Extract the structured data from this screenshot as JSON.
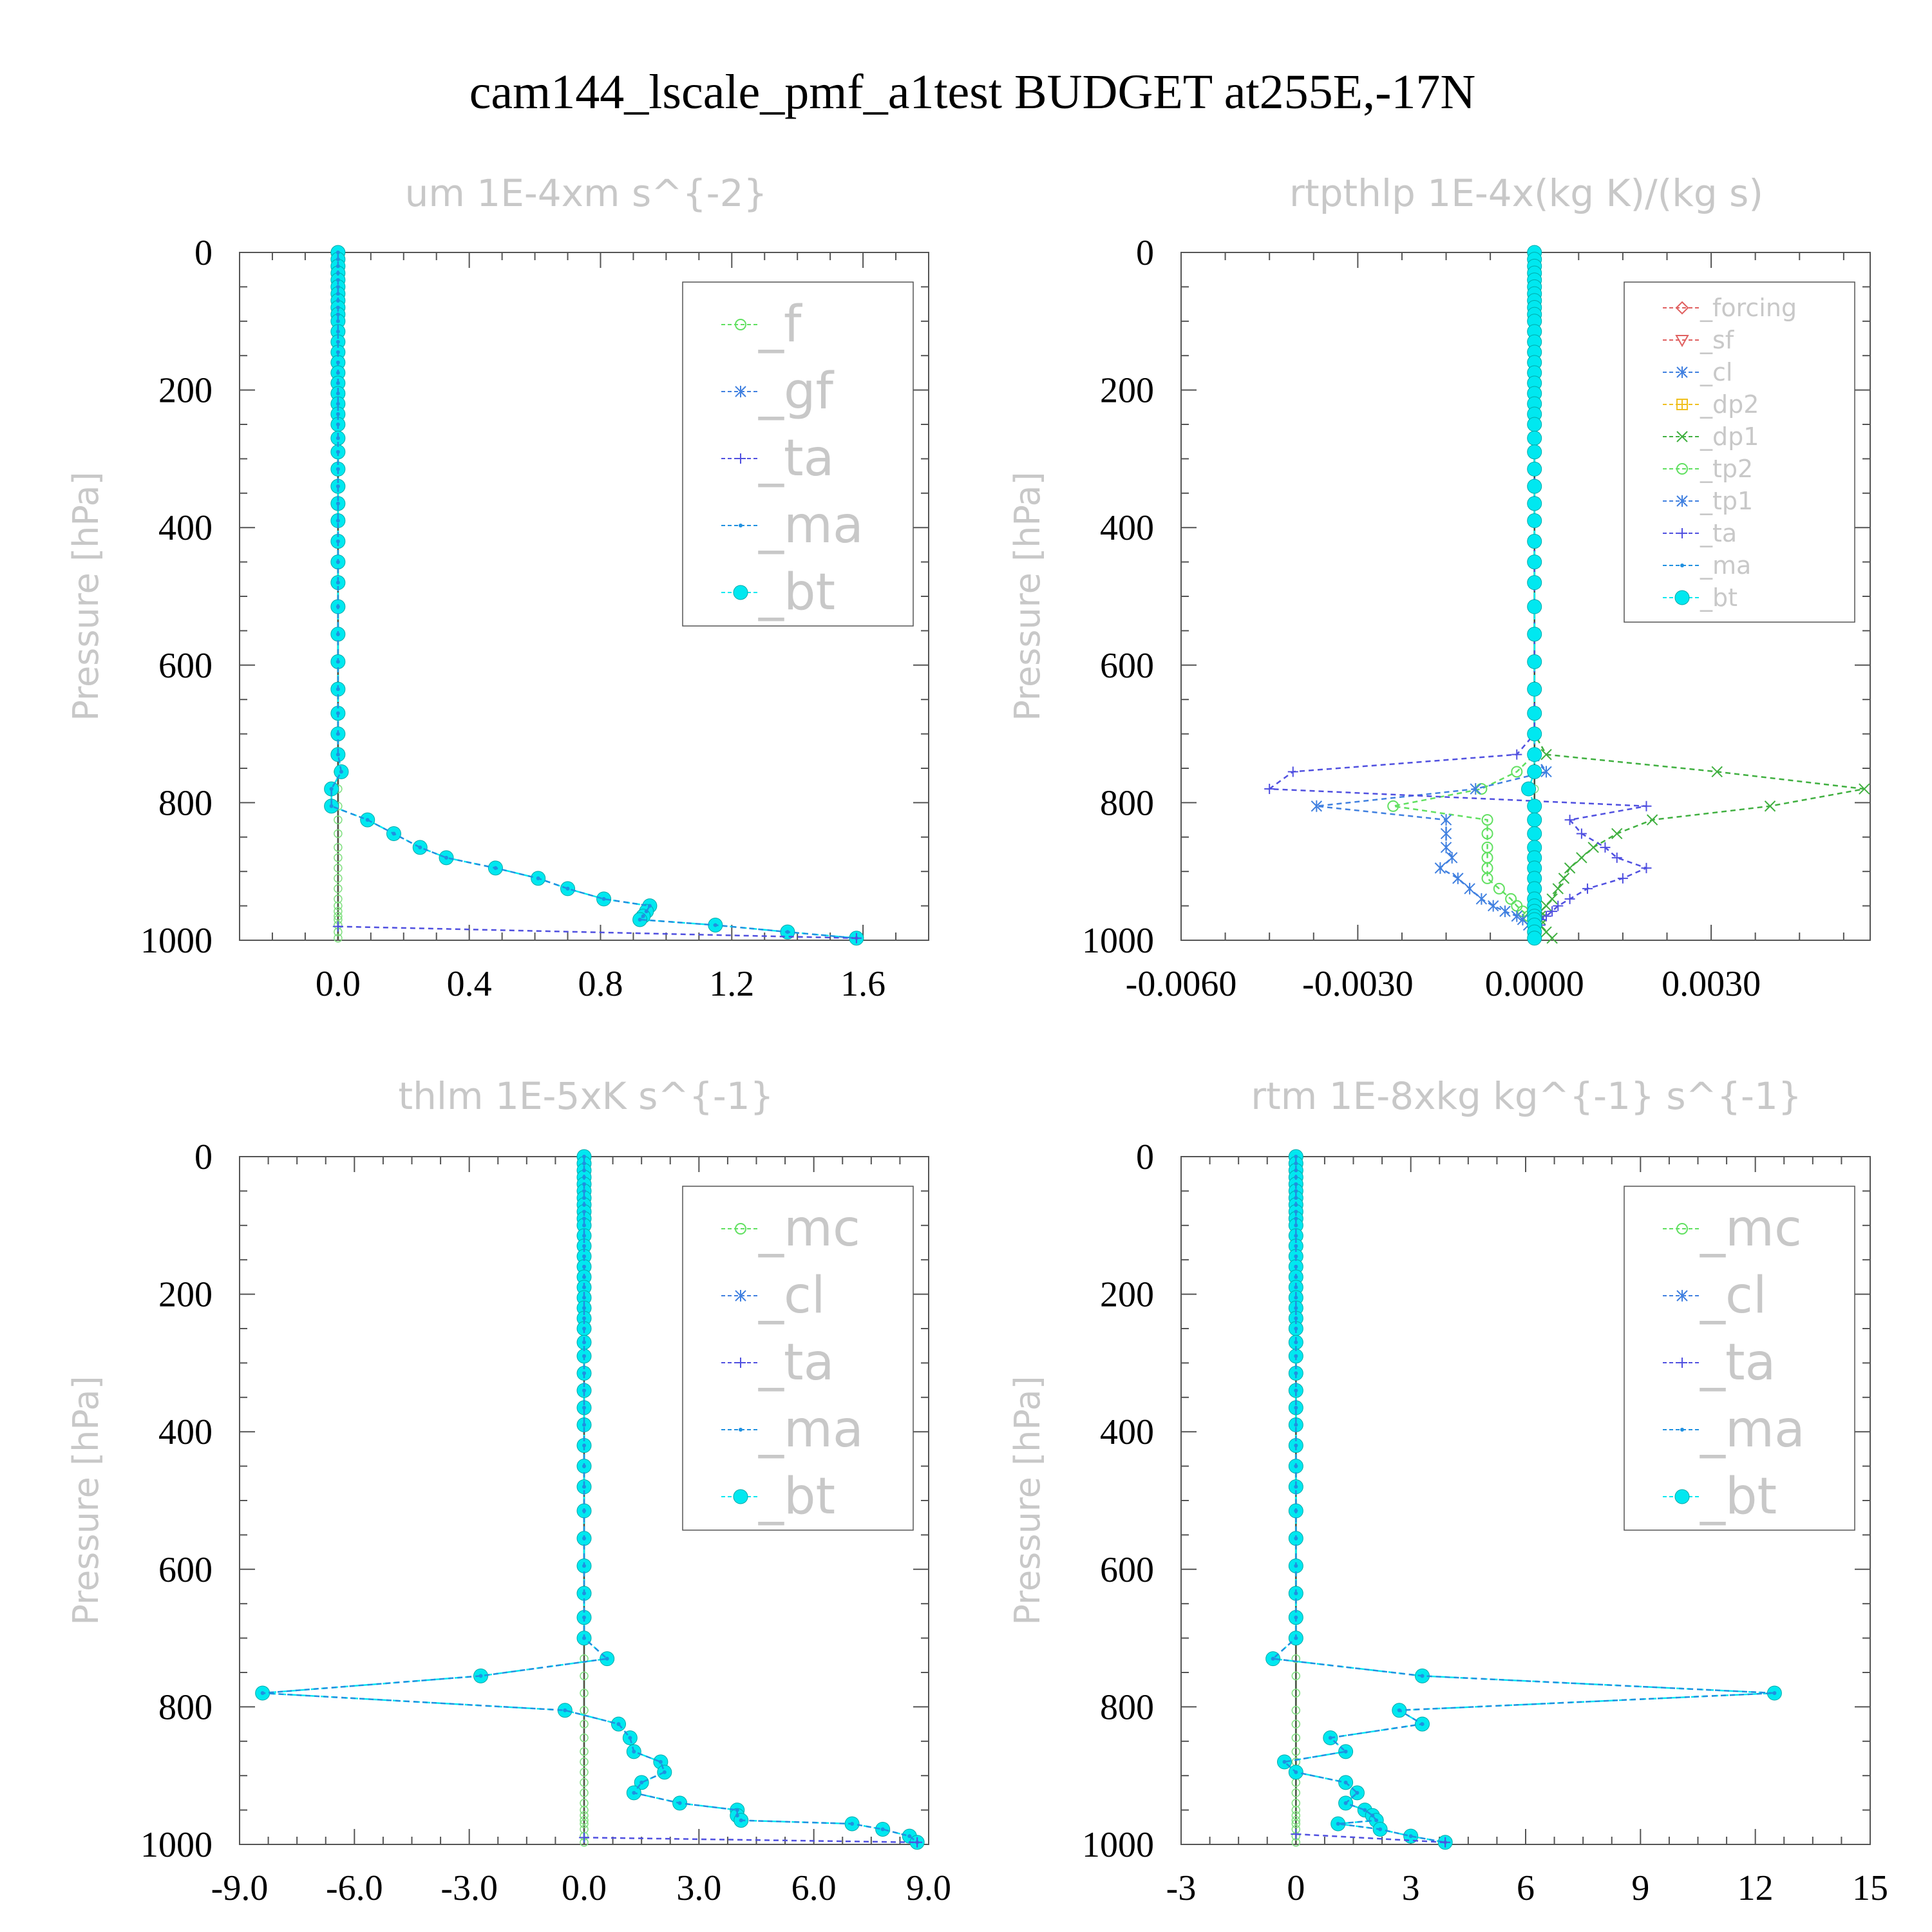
{
  "title": "cam144_lscale_pmf_a1test  BUDGET at255E,-17N",
  "y_axis_label": "Pressure [hPa]",
  "colors": {
    "forcing": "#e06060",
    "sf": "#e06060",
    "cl_orange": "#f0b040",
    "dp2": "#f0c020",
    "dp1": "#40b040",
    "f": "#60e060",
    "gf": "#4080e0",
    "mc": "#60e060",
    "tp2": "#60e060",
    "tp1": "#4080e0",
    "cl": "#4080e0",
    "ta": "#5050e0",
    "ma": "#2090e0",
    "bt": "#00e8f0"
  },
  "chart_data": [
    {
      "type": "line",
      "title": "um  1E-4xm s^{-2}",
      "ylabel": "Pressure [hPa]",
      "ylim": [
        1000,
        0
      ],
      "xlim": [
        -0.3,
        1.8
      ],
      "xticks": [
        0.0,
        0.4,
        0.8,
        1.2,
        1.6
      ],
      "xtick_labels": [
        "0.0",
        "0.4",
        "0.8",
        "1.2",
        "1.6"
      ],
      "yticks": [
        0,
        200,
        400,
        600,
        800,
        1000
      ],
      "ytick_labels": [
        "0",
        "200",
        "400",
        "600",
        "800",
        "1000"
      ],
      "legend": [
        "_f",
        "_gf",
        "_ta",
        "_ma",
        "_bt"
      ],
      "legend_position": "top-right",
      "legend_size": "large",
      "pressure": [
        0,
        10,
        20,
        30,
        40,
        50,
        60,
        70,
        80,
        90,
        100,
        115,
        130,
        145,
        160,
        175,
        190,
        205,
        220,
        235,
        250,
        270,
        290,
        315,
        340,
        365,
        390,
        420,
        450,
        480,
        515,
        555,
        595,
        635,
        670,
        700,
        730,
        755,
        780,
        805,
        825,
        845,
        865,
        880,
        895,
        910,
        925,
        940,
        950,
        958,
        965,
        970,
        978,
        988,
        997
      ],
      "series": [
        {
          "name": "_bt",
          "color_key": "bt",
          "marker": "dot",
          "values": [
            0,
            0,
            0,
            0,
            0,
            0,
            0,
            0,
            0,
            0,
            0,
            0,
            0,
            0,
            0,
            0,
            0,
            0,
            0,
            0,
            0,
            0,
            0,
            0,
            0,
            0,
            0,
            0,
            0,
            0,
            0,
            0,
            0,
            0,
            0,
            0,
            0,
            0.01,
            -0.02,
            -0.02,
            0.09,
            0.17,
            0.25,
            0.33,
            0.48,
            0.61,
            0.7,
            0.81,
            0.95,
            0.94,
            0.93,
            0.92,
            1.15,
            1.37,
            1.58
          ]
        },
        {
          "name": "_ma",
          "color_key": "ma",
          "marker": "tiny",
          "values": [
            0,
            0,
            0,
            0,
            0,
            0,
            0,
            0,
            0,
            0,
            0,
            0,
            0,
            0,
            0,
            0,
            0,
            0,
            0,
            0,
            0,
            0,
            0,
            0,
            0,
            0,
            0,
            0,
            0,
            0,
            0,
            0,
            0,
            0,
            0,
            0,
            0,
            0.01,
            -0.02,
            -0.02,
            0.09,
            0.17,
            0.25,
            0.33,
            0.48,
            0.61,
            0.7,
            0.81,
            0.95,
            0.94,
            0.93,
            0.92,
            1.15,
            1.37,
            1.58
          ]
        },
        {
          "name": "_ta",
          "color_key": "ta",
          "marker": "plus",
          "pressure": [
            980,
            997
          ],
          "values": [
            0,
            1.58
          ]
        }
      ]
    },
    {
      "type": "line",
      "title": "rtpthlp  1E-4x(kg K)/(kg s)",
      "ylabel": "Pressure [hPa]",
      "ylim": [
        1000,
        0
      ],
      "xlim": [
        -0.006,
        0.0057
      ],
      "xticks": [
        -0.006,
        -0.003,
        0.0,
        0.003
      ],
      "xtick_labels": [
        "-0.0060",
        "-0.0030",
        "0.0000",
        "0.0030"
      ],
      "yticks": [
        0,
        200,
        400,
        600,
        800,
        1000
      ],
      "ytick_labels": [
        "0",
        "200",
        "400",
        "600",
        "800",
        "1000"
      ],
      "legend": [
        "_forcing",
        "_sf",
        "_cl",
        "_dp2",
        "_dp1",
        "_tp2",
        "_tp1",
        "_ta",
        "_ma",
        "_bt"
      ],
      "legend_position": "top-right",
      "legend_size": "small",
      "pressure": [
        0,
        10,
        20,
        30,
        40,
        50,
        60,
        70,
        80,
        90,
        100,
        115,
        130,
        145,
        160,
        175,
        190,
        205,
        220,
        235,
        250,
        270,
        290,
        315,
        340,
        365,
        390,
        420,
        450,
        480,
        515,
        555,
        595,
        635,
        670,
        700,
        730,
        755,
        780,
        805,
        825,
        845,
        865,
        880,
        895,
        910,
        925,
        940,
        950,
        958,
        965,
        970,
        978,
        988,
        997
      ],
      "series": [
        {
          "name": "_dp1",
          "color_key": "dp1",
          "marker": "x",
          "values": [
            0,
            0,
            0,
            0,
            0,
            0,
            0,
            0,
            0,
            0,
            0,
            0,
            0,
            0,
            0,
            0,
            0,
            0,
            0,
            0,
            0,
            0,
            0,
            0,
            0,
            0,
            0,
            0,
            0,
            0,
            0,
            0,
            0,
            0,
            0,
            0,
            0.0002,
            0.0031,
            0.0056,
            0.004,
            0.002,
            0.0014,
            0.001,
            0.0008,
            0.0006,
            0.0005,
            0.0004,
            0.0003,
            0.0002,
            0.0001,
            0.0001,
            0.0001,
            0.0001,
            0.0002,
            0.0003
          ]
        },
        {
          "name": "_tp2",
          "color_key": "tp2",
          "marker": "circle",
          "values": [
            0,
            0,
            0,
            0,
            0,
            0,
            0,
            0,
            0,
            0,
            0,
            0,
            0,
            0,
            0,
            0,
            0,
            0,
            0,
            0,
            0,
            0,
            0,
            0,
            0,
            0,
            0,
            0,
            0,
            0,
            0,
            0,
            0,
            0,
            0,
            0,
            0,
            -0.0003,
            -0.0009,
            -0.0024,
            -0.0008,
            -0.0008,
            -0.0008,
            -0.0008,
            -0.0008,
            -0.0008,
            -0.0006,
            -0.0004,
            -0.0003,
            -0.0002,
            -0.0001,
            0,
            0,
            0,
            0
          ]
        },
        {
          "name": "_tp1",
          "color_key": "tp1",
          "marker": "asterisk",
          "values": [
            0,
            0,
            0,
            0,
            0,
            0,
            0,
            0,
            0,
            0,
            0,
            0,
            0,
            0,
            0,
            0,
            0,
            0,
            0,
            0,
            0,
            0,
            0,
            0,
            0,
            0,
            0,
            0,
            0,
            0,
            0,
            0,
            0,
            0,
            0,
            0,
            0,
            0.0002,
            -0.001,
            -0.0037,
            -0.0015,
            -0.0015,
            -0.0015,
            -0.0014,
            -0.0016,
            -0.0013,
            -0.0011,
            -0.0009,
            -0.0007,
            -0.0005,
            -0.0003,
            -0.0002,
            -0.0001,
            0,
            0
          ]
        },
        {
          "name": "_ta",
          "color_key": "ta",
          "marker": "plus",
          "values": [
            0,
            0,
            0,
            0,
            0,
            0,
            0,
            0,
            0,
            0,
            0,
            0,
            0,
            0,
            0,
            0,
            0,
            0,
            0,
            0,
            0,
            0,
            0,
            0,
            0,
            0,
            0,
            0,
            0,
            0,
            0,
            0,
            0,
            0,
            0,
            0,
            -0.0003,
            -0.0041,
            -0.0045,
            0.0019,
            0.0006,
            0.0008,
            0.0012,
            0.0014,
            0.0019,
            0.0015,
            0.0009,
            0.0006,
            0.0004,
            0.0003,
            0.0002,
            0.0001,
            0.0001,
            0,
            0
          ]
        },
        {
          "name": "_bt",
          "color_key": "bt",
          "marker": "dot",
          "values": [
            0,
            0,
            0,
            0,
            0,
            0,
            0,
            0,
            0,
            0,
            0,
            0,
            0,
            0,
            0,
            0,
            0,
            0,
            0,
            0,
            0,
            0,
            0,
            0,
            0,
            0,
            0,
            0,
            0,
            0,
            0,
            0,
            0,
            0,
            0,
            0,
            0,
            0,
            -0.0001,
            0,
            0,
            0,
            0,
            0,
            0,
            0,
            0,
            0,
            0,
            0,
            0,
            0,
            0,
            0,
            0
          ]
        }
      ]
    },
    {
      "type": "line",
      "title": "thlm  1E-5xK s^{-1}",
      "ylabel": "Pressure [hPa]",
      "ylim": [
        1000,
        0
      ],
      "xlim": [
        -9.0,
        9.0
      ],
      "xticks": [
        -9.0,
        -6.0,
        -3.0,
        0.0,
        3.0,
        6.0,
        9.0
      ],
      "xtick_labels": [
        "-9.0",
        "-6.0",
        "-3.0",
        "0.0",
        "3.0",
        "6.0",
        "9.0"
      ],
      "yticks": [
        0,
        200,
        400,
        600,
        800,
        1000
      ],
      "ytick_labels": [
        "0",
        "200",
        "400",
        "600",
        "800",
        "1000"
      ],
      "legend": [
        "_mc",
        "_cl",
        "_ta",
        "_ma",
        "_bt"
      ],
      "legend_position": "top-right",
      "legend_size": "large",
      "pressure": [
        0,
        10,
        20,
        30,
        40,
        50,
        60,
        70,
        80,
        90,
        100,
        115,
        130,
        145,
        160,
        175,
        190,
        205,
        220,
        235,
        250,
        270,
        290,
        315,
        340,
        365,
        390,
        420,
        450,
        480,
        515,
        555,
        595,
        635,
        670,
        700,
        730,
        755,
        780,
        805,
        825,
        845,
        865,
        880,
        895,
        910,
        925,
        940,
        950,
        958,
        965,
        970,
        978,
        988,
        997
      ],
      "series": [
        {
          "name": "_bt",
          "color_key": "bt",
          "marker": "dot",
          "values": [
            0,
            0,
            0,
            0,
            0,
            0,
            0,
            0,
            0,
            0,
            0,
            0,
            0,
            0,
            0,
            0,
            0,
            0,
            0,
            0,
            0,
            0,
            0,
            0,
            0,
            0,
            0,
            0,
            0,
            0,
            0,
            0,
            0,
            0,
            0,
            0,
            0.6,
            -2.7,
            -8.4,
            -0.5,
            0.9,
            1.2,
            1.3,
            2.0,
            2.1,
            1.5,
            1.3,
            2.5,
            4.0,
            4.0,
            4.1,
            7.0,
            7.8,
            8.5,
            8.7
          ]
        },
        {
          "name": "_ma",
          "color_key": "ma",
          "marker": "tiny",
          "values": [
            0,
            0,
            0,
            0,
            0,
            0,
            0,
            0,
            0,
            0,
            0,
            0,
            0,
            0,
            0,
            0,
            0,
            0,
            0,
            0,
            0,
            0,
            0,
            0,
            0,
            0,
            0,
            0,
            0,
            0,
            0,
            0,
            0,
            0,
            0,
            0,
            0.6,
            -2.7,
            -8.4,
            -0.5,
            0.9,
            1.2,
            1.3,
            2.0,
            2.1,
            1.5,
            1.3,
            2.5,
            4.0,
            4.0,
            4.1,
            7.0,
            7.8,
            8.5,
            8.7
          ]
        },
        {
          "name": "_ta",
          "color_key": "ta",
          "marker": "plus",
          "pressure": [
            990,
            997
          ],
          "values": [
            0,
            8.7
          ]
        }
      ]
    },
    {
      "type": "line",
      "title": "rtm  1E-8xkg kg^{-1} s^{-1}",
      "ylabel": "Pressure [hPa]",
      "ylim": [
        1000,
        0
      ],
      "xlim": [
        -3,
        15
      ],
      "xticks": [
        -3,
        0,
        3,
        6,
        9,
        12,
        15
      ],
      "xtick_labels": [
        "-3",
        "0",
        "3",
        "6",
        "9",
        "12",
        "15"
      ],
      "yticks": [
        0,
        200,
        400,
        600,
        800,
        1000
      ],
      "ytick_labels": [
        "0",
        "200",
        "400",
        "600",
        "800",
        "1000"
      ],
      "legend": [
        "_mc",
        "_cl",
        "_ta",
        "_ma",
        "_bt"
      ],
      "legend_position": "top-right",
      "legend_size": "large",
      "pressure": [
        0,
        10,
        20,
        30,
        40,
        50,
        60,
        70,
        80,
        90,
        100,
        115,
        130,
        145,
        160,
        175,
        190,
        205,
        220,
        235,
        250,
        270,
        290,
        315,
        340,
        365,
        390,
        420,
        450,
        480,
        515,
        555,
        595,
        635,
        670,
        700,
        730,
        755,
        780,
        805,
        825,
        845,
        865,
        880,
        895,
        910,
        925,
        940,
        950,
        958,
        965,
        970,
        978,
        988,
        997
      ],
      "series": [
        {
          "name": "_bt",
          "color_key": "bt",
          "marker": "dot",
          "values": [
            0,
            0,
            0,
            0,
            0,
            0,
            0,
            0,
            0,
            0,
            0,
            0,
            0,
            0,
            0,
            0,
            0,
            0,
            0,
            0,
            0,
            0,
            0,
            0,
            0,
            0,
            0,
            0,
            0,
            0,
            0,
            0,
            0,
            0,
            0,
            0,
            -0.6,
            3.3,
            12.5,
            2.7,
            3.3,
            0.9,
            1.3,
            -0.3,
            0.0,
            1.3,
            1.6,
            1.3,
            1.8,
            2.0,
            2.1,
            1.1,
            2.2,
            3.0,
            3.9
          ]
        },
        {
          "name": "_ma",
          "color_key": "ma",
          "marker": "tiny",
          "values": [
            0,
            0,
            0,
            0,
            0,
            0,
            0,
            0,
            0,
            0,
            0,
            0,
            0,
            0,
            0,
            0,
            0,
            0,
            0,
            0,
            0,
            0,
            0,
            0,
            0,
            0,
            0,
            0,
            0,
            0,
            0,
            0,
            0,
            0,
            0,
            0,
            -0.6,
            3.3,
            12.5,
            2.7,
            3.3,
            0.9,
            1.3,
            -0.3,
            0.0,
            1.3,
            1.6,
            1.3,
            1.8,
            2.0,
            2.1,
            1.1,
            2.2,
            3.0,
            3.9
          ]
        },
        {
          "name": "_ta",
          "color_key": "ta",
          "marker": "plus",
          "pressure": [
            985,
            997
          ],
          "values": [
            0,
            3.9
          ]
        }
      ]
    }
  ]
}
